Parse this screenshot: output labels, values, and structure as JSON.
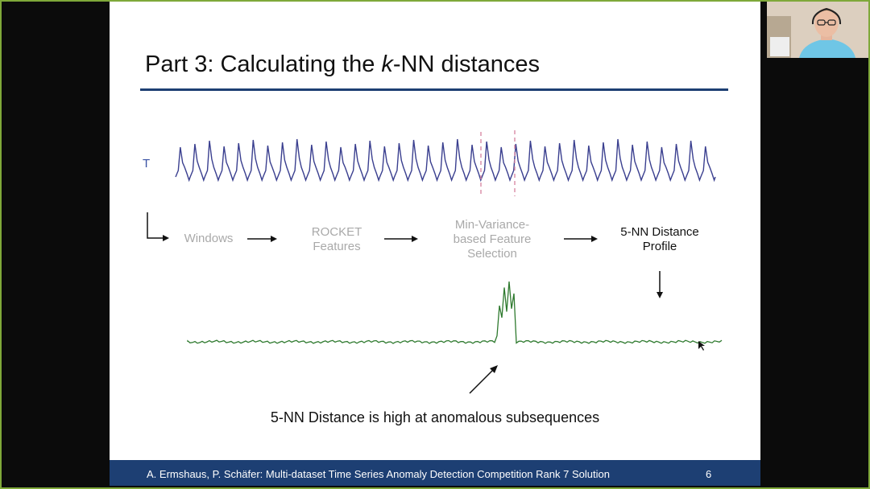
{
  "slide": {
    "title_prefix": "Part 3: Calculating the ",
    "title_italic": "k",
    "title_suffix": "-NN distances",
    "series_label": "T",
    "pipeline": [
      {
        "label": "Windows",
        "style": "grey"
      },
      {
        "label": "ROCKET\nFeatures",
        "style": "grey"
      },
      {
        "label": "Min-Variance-\nbased Feature\nSelection",
        "style": "grey"
      },
      {
        "label": "5-NN Distance\nProfile",
        "style": "dark"
      }
    ],
    "caption": "5-NN Distance is high at anomalous subsequences",
    "footer_text": "A. Ermshaus, P. Schäfer: Multi-dataset Time Series Anomaly Detection Competition Rank 7 Solution",
    "page_number": "6"
  },
  "colors": {
    "title_rule": "#1d3f73",
    "footer_bg": "#1d3f73",
    "series_line": "#3a3f8f",
    "distance_line": "#2f7a2f",
    "anomaly_marker": "#d98aa6",
    "frame_border": "#7fa83a"
  },
  "webcam": {
    "icon": "person-video-feed"
  }
}
